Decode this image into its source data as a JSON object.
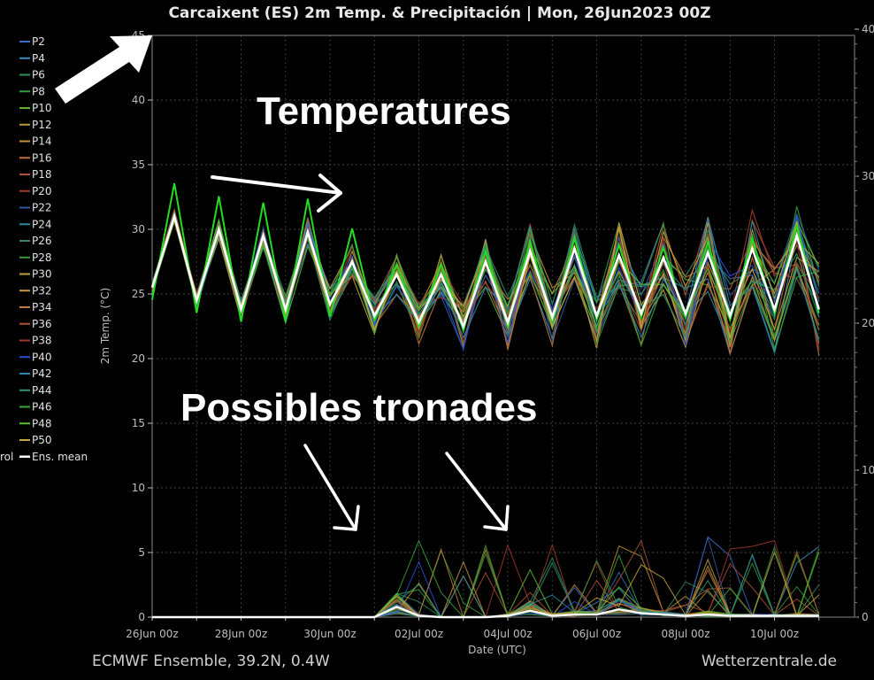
{
  "chart_data": {
    "type": "line",
    "title": "Carcaixent  (ES)  2m Temp. & Precipitación | Mon, 26Jun2023 00Z",
    "xlabel": "Date (UTC)",
    "ylabel": "2m Temp. (°C)",
    "ylim": [
      0,
      45
    ],
    "yticks": [
      0,
      5,
      10,
      15,
      20,
      25,
      30,
      35,
      40,
      45
    ],
    "y2ticks": [
      "0",
      "10",
      "20",
      "30",
      "40"
    ],
    "grid": true,
    "legend_position": "left-outside",
    "xticks": [
      {
        "day": 0,
        "label": "26Jun 00z"
      },
      {
        "day": 2,
        "label": "28Jun 00z"
      },
      {
        "day": 4,
        "label": "30Jun 00z"
      },
      {
        "day": 6,
        "label": "02Jul 00z"
      },
      {
        "day": 8,
        "label": "04Jul 00z"
      },
      {
        "day": 10,
        "label": "06Jul 00z"
      },
      {
        "day": 12,
        "label": "08Jul 00z"
      },
      {
        "day": 14,
        "label": "10Jul 00z"
      }
    ],
    "x_days": [
      0,
      0.5,
      1,
      1.5,
      2,
      2.5,
      3,
      3.5,
      4,
      4.5,
      5,
      5.5,
      6,
      6.5,
      7,
      7.5,
      8,
      8.5,
      9,
      9.5,
      10,
      10.5,
      11,
      11.5,
      12,
      12.5,
      13,
      13.5,
      14,
      14.5,
      15
    ],
    "ens_mean_temp": [
      25.5,
      31,
      24.5,
      30,
      23.8,
      29.5,
      23.8,
      29.8,
      24.2,
      27.5,
      23.3,
      26.5,
      22.8,
      26.5,
      22.5,
      27.5,
      22.8,
      28.3,
      23.2,
      28.5,
      23.3,
      28,
      23.5,
      27.8,
      23.5,
      28.2,
      23.3,
      28.5,
      23.8,
      29.5,
      23.8
    ],
    "ens_mean_precip": [
      0,
      0,
      0,
      0,
      0,
      0,
      0,
      0,
      0,
      0,
      0,
      0.8,
      0.1,
      0,
      0,
      0,
      0.1,
      0.5,
      0.1,
      0.2,
      0.2,
      0.6,
      0.3,
      0.2,
      0.1,
      0.2,
      0.1,
      0.1,
      0.1,
      0.1,
      0.1
    ],
    "series": [
      {
        "name": "P2",
        "color": "#3b6cc4"
      },
      {
        "name": "P4",
        "color": "#3b8cc0"
      },
      {
        "name": "P6",
        "color": "#2f8f5a"
      },
      {
        "name": "P8",
        "color": "#2e9e3a"
      },
      {
        "name": "P10",
        "color": "#57b22e"
      },
      {
        "name": "P12",
        "color": "#b99a3a"
      },
      {
        "name": "P14",
        "color": "#c7913a"
      },
      {
        "name": "P16",
        "color": "#c0703a"
      },
      {
        "name": "P18",
        "color": "#b0503a"
      },
      {
        "name": "P20",
        "color": "#a03a2c"
      },
      {
        "name": "P22",
        "color": "#2f5aa0"
      },
      {
        "name": "P24",
        "color": "#2f8a9e"
      },
      {
        "name": "P26",
        "color": "#2f8a6a"
      },
      {
        "name": "P28",
        "color": "#3a9a3a"
      },
      {
        "name": "P30",
        "color": "#c0a040"
      },
      {
        "name": "P32",
        "color": "#c89a40"
      },
      {
        "name": "P34",
        "color": "#c07a3a"
      },
      {
        "name": "P36",
        "color": "#a8562e"
      },
      {
        "name": "P38",
        "color": "#a03828"
      },
      {
        "name": "P40",
        "color": "#2a4ed8"
      },
      {
        "name": "P42",
        "color": "#2a86b0"
      },
      {
        "name": "P44",
        "color": "#2a9a6a"
      },
      {
        "name": "P46",
        "color": "#3aa83a"
      },
      {
        "name": "P48",
        "color": "#5ac030"
      },
      {
        "name": "P50",
        "color": "#c8a83a"
      }
    ],
    "legend_partial": "rol",
    "legend_mean_label": "Ens. mean",
    "mean_color": "#ffffff",
    "control_color": "#22dd22"
  },
  "annotations": {
    "temperatures": "Temperatures",
    "storms": "Possibles tronades"
  },
  "footer": {
    "left": "ECMWF Ensemble, 39.2N, 0.4W",
    "right": "Wetterzentrale.de"
  }
}
